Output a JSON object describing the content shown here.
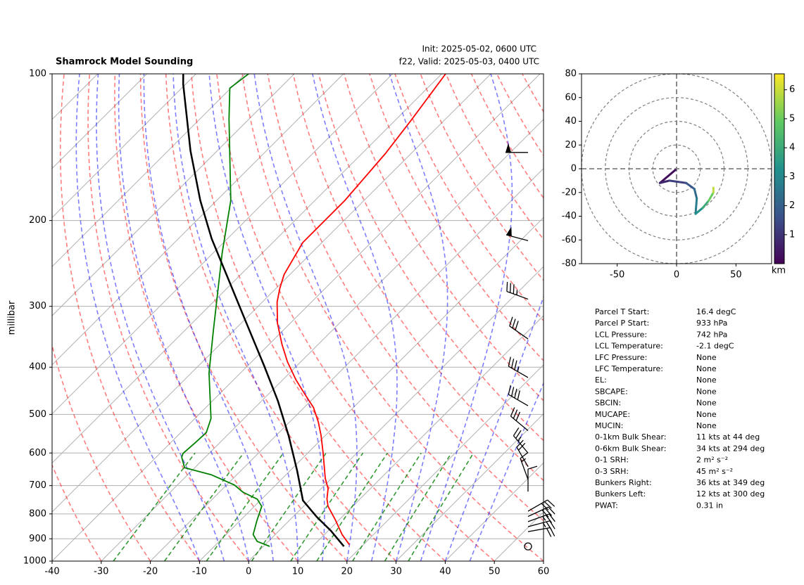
{
  "chart_data": [
    {
      "type": "skewt",
      "title": "Shamrock Model Sounding",
      "annotations": [
        "Init: 2025-05-02, 0600 UTC",
        "f22, Valid: 2025-05-03, 0400 UTC"
      ],
      "ylabel": "millibar",
      "xlim": [
        -40,
        60
      ],
      "xticks": [
        -40,
        -30,
        -20,
        -10,
        0,
        10,
        20,
        30,
        40,
        50,
        60
      ],
      "ylim": [
        1000,
        100
      ],
      "yticks": [
        1000,
        900,
        800,
        700,
        600,
        500,
        400,
        300,
        200,
        100
      ],
      "log_y": true,
      "grid": true,
      "series": [
        {
          "color": "#ff0000",
          "pressure": [
            926,
            882,
            825,
            772,
            746,
            710,
            676,
            601,
            553,
            518,
            484,
            453,
            424,
            390,
            359,
            325,
            294,
            275,
            258,
            222,
            182,
            146,
            124,
            100
          ],
          "temperature": [
            17.2,
            13.6,
            9.4,
            5.0,
            3.3,
            1.4,
            -1.3,
            -6.8,
            -10.8,
            -14.2,
            -18.1,
            -22.8,
            -27.4,
            -32.7,
            -37.4,
            -42.6,
            -47.0,
            -49.3,
            -51.2,
            -53.9,
            -53.9,
            -55.2,
            -56.8,
            -59.2
          ]
        },
        {
          "color": "#008000",
          "pressure": [
            933,
            911,
            882,
            825,
            772,
            746,
            722,
            698,
            665,
            643,
            612,
            601,
            572,
            545,
            510,
            411,
            336,
            233,
            182,
            124,
            107,
            100
          ],
          "temperature": [
            1.3,
            -2.3,
            -4.5,
            -6.6,
            -8.5,
            -10.9,
            -15.2,
            -18.4,
            -25.2,
            -32.1,
            -34.8,
            -35.3,
            -35.0,
            -34.8,
            -36.7,
            -46.4,
            -54.2,
            -68.2,
            -77.1,
            -94.0,
            -100.2,
            -99.3
          ]
        },
        {
          "color": "#000000",
          "pressure": [
            933,
            867,
            811,
            751,
            653,
            553,
            469,
            397,
            325,
            266,
            218,
            182,
            144,
            105,
            100
          ],
          "temperature": [
            16.4,
            10.6,
            4.8,
            -1.3,
            -8.5,
            -17.4,
            -26.7,
            -36.7,
            -48.9,
            -61.1,
            -73.2,
            -83.3,
            -95.4,
            -110.5,
            -112.6
          ]
        }
      ],
      "wind": {
        "pressure": [
          145,
          220,
          290,
          350,
          420,
          480,
          540,
          600,
          640,
          680,
          720,
          790,
          810,
          830,
          850,
          870,
          933
        ],
        "speed": [
          50,
          50,
          35,
          30,
          35,
          40,
          30,
          25,
          20,
          15,
          10,
          30,
          30,
          25,
          25,
          20,
          0
        ],
        "direction": [
          270,
          285,
          290,
          305,
          300,
          300,
          310,
          320,
          330,
          340,
          360,
          60,
          65,
          70,
          75,
          80,
          0
        ]
      }
    },
    {
      "type": "hodograph",
      "xlim": [
        -80,
        80
      ],
      "xticks": [
        -50,
        0,
        50
      ],
      "ylim": [
        -80,
        80
      ],
      "yticks": [
        -80,
        -60,
        -40,
        -20,
        0,
        20,
        40,
        60,
        80
      ],
      "u": [
        -1,
        -14,
        -6,
        8,
        15,
        17,
        16,
        22,
        27,
        31,
        31
      ],
      "v": [
        -1,
        -12,
        -10,
        -12,
        -17,
        -25,
        -38,
        -33,
        -27,
        -20,
        -16
      ],
      "height": [
        0.05,
        0.5,
        1.0,
        1.5,
        2.0,
        2.5,
        3.0,
        3.5,
        4.5,
        5.5,
        6.3
      ],
      "colormap": "viridis",
      "colorbar": {
        "lim": [
          0,
          6.55
        ],
        "ticks": [
          1,
          2,
          3,
          4,
          5,
          6
        ],
        "label": "km"
      }
    }
  ],
  "parameters": {
    "labels": [
      "Parcel T Start:",
      "Parcel P Start:",
      "LCL Pressure:",
      "LCL Temperature:",
      "LFC Pressure:",
      "LFC Temperature:",
      "EL:",
      "SBCAPE:",
      "SBCIN:",
      "MUCAPE:",
      "MUCIN:",
      "0-1km Bulk Shear:",
      "0-6km Bulk Shear:",
      "0-1 SRH:",
      "0-3 SRH:",
      "Bunkers Right:",
      "Bunkers Left:",
      "PWAT:"
    ],
    "values": [
      "16.4 degC",
      "933 hPa",
      "742 hPa",
      "-2.1 degC",
      "None",
      "None",
      "None",
      "None",
      "None",
      "None",
      "None",
      "11 kts at 44 deg",
      "34 kts at 294 deg",
      "2 m² s⁻²",
      "45 m² s⁻²",
      "36 kts at 349 deg",
      "12 kts at 300 deg",
      "0.31 in"
    ]
  }
}
